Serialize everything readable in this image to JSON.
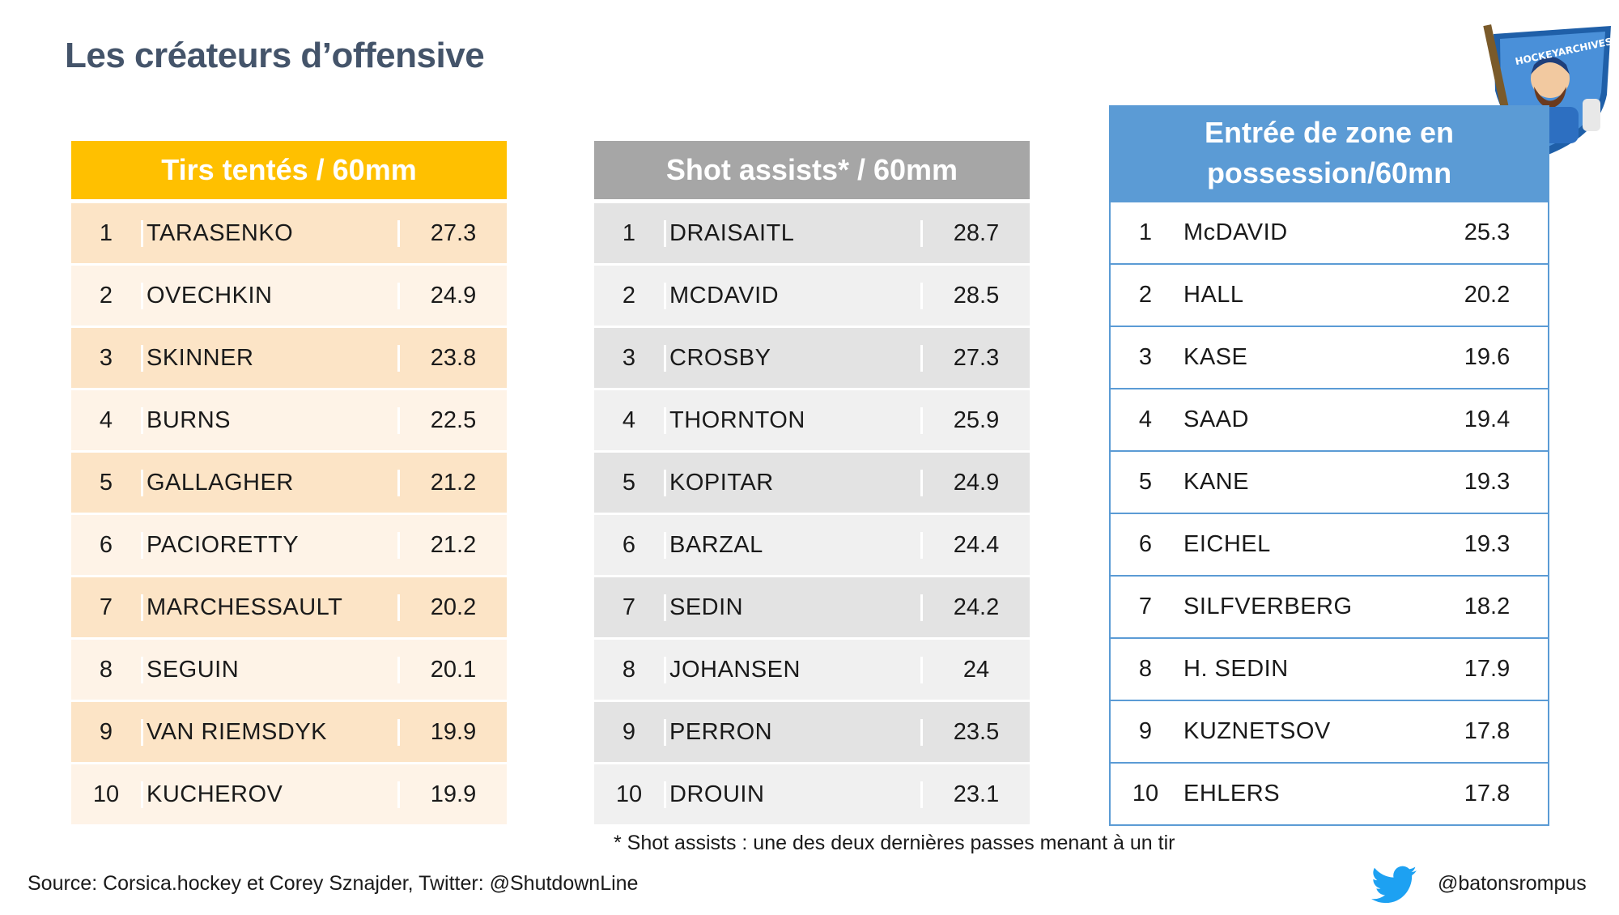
{
  "title": "Les créateurs d’offensive",
  "colors": {
    "orange": "#ffc000",
    "gray": "#a6a6a6",
    "blue": "#5b9bd5",
    "title": "#44546a"
  },
  "chart_data": [
    {
      "type": "table",
      "title": "Tirs tentés / 60mm",
      "rows": [
        {
          "rank": "1",
          "name": "TARASENKO",
          "value": "27.3"
        },
        {
          "rank": "2",
          "name": "OVECHKIN",
          "value": "24.9"
        },
        {
          "rank": "3",
          "name": "SKINNER",
          "value": "23.8"
        },
        {
          "rank": "4",
          "name": "BURNS",
          "value": "22.5"
        },
        {
          "rank": "5",
          "name": "GALLAGHER",
          "value": "21.2"
        },
        {
          "rank": "6",
          "name": "PACIORETTY",
          "value": "21.2"
        },
        {
          "rank": "7",
          "name": "MARCHESSAULT",
          "value": "20.2"
        },
        {
          "rank": "8",
          "name": "SEGUIN",
          "value": "20.1"
        },
        {
          "rank": "9",
          "name": "VAN RIEMSDYK",
          "value": "19.9"
        },
        {
          "rank": "10",
          "name": "KUCHEROV",
          "value": "19.9"
        }
      ]
    },
    {
      "type": "table",
      "title": "Shot assists* / 60mm",
      "rows": [
        {
          "rank": "1",
          "name": "DRAISAITL",
          "value": "28.7"
        },
        {
          "rank": "2",
          "name": "MCDAVID",
          "value": "28.5"
        },
        {
          "rank": "3",
          "name": "CROSBY",
          "value": "27.3"
        },
        {
          "rank": "4",
          "name": "THORNTON",
          "value": "25.9"
        },
        {
          "rank": "5",
          "name": "KOPITAR",
          "value": "24.9"
        },
        {
          "rank": "6",
          "name": "BARZAL",
          "value": "24.4"
        },
        {
          "rank": "7",
          "name": "SEDIN",
          "value": "24.2"
        },
        {
          "rank": "8",
          "name": "JOHANSEN",
          "value": "24"
        },
        {
          "rank": "9",
          "name": "PERRON",
          "value": "23.5"
        },
        {
          "rank": "10",
          "name": "DROUIN",
          "value": "23.1"
        }
      ]
    },
    {
      "type": "table",
      "title": "Entrée de zone en possession/60mn",
      "rows": [
        {
          "rank": "1",
          "name": "McDAVID",
          "value": "25.3"
        },
        {
          "rank": "2",
          "name": "HALL",
          "value": "20.2"
        },
        {
          "rank": "3",
          "name": "KASE",
          "value": "19.6"
        },
        {
          "rank": "4",
          "name": "SAAD",
          "value": "19.4"
        },
        {
          "rank": "5",
          "name": "KANE",
          "value": "19.3"
        },
        {
          "rank": "6",
          "name": "EICHEL",
          "value": "19.3"
        },
        {
          "rank": "7",
          "name": "SILFVERBERG",
          "value": "18.2"
        },
        {
          "rank": "8",
          "name": "H. SEDIN",
          "value": "17.9"
        },
        {
          "rank": "9",
          "name": "KUZNETSOV",
          "value": "17.8"
        },
        {
          "rank": "10",
          "name": "EHLERS",
          "value": "17.8"
        }
      ]
    }
  ],
  "footnote": "* Shot assists : une des deux dernières passes menant à un tir",
  "source": "Source: Corsica.hockey et Corey Sznajder, Twitter: @ShutdownLine",
  "handle": "@batonsrompus",
  "logo": {
    "text": "HOCKEYARCHIVES.INFO",
    "icon": "hockey-player-logo"
  },
  "twitter_icon": "twitter-bird-icon"
}
